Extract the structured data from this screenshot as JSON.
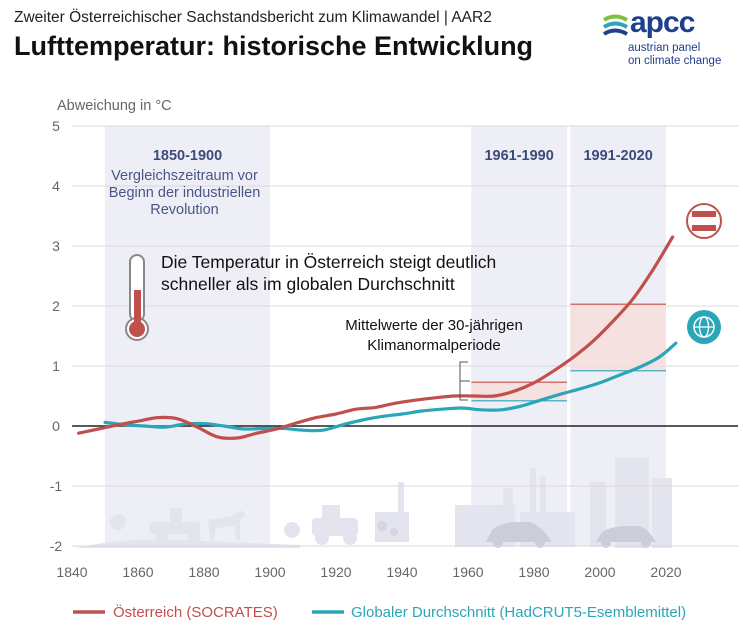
{
  "header": {
    "supertitle": "Zweiter Österreichischer Sachstandsbericht zum Klimawandel | AAR2",
    "title": "Lufttemperatur: historische Entwicklung"
  },
  "logo": {
    "word": "apcc",
    "line1": "austrian panel",
    "line2": "on climate change"
  },
  "chart_data": {
    "type": "line",
    "ylabel": "Abweichung in  °C",
    "xlim": [
      1840,
      2030
    ],
    "ylim": [
      -2,
      5
    ],
    "xticks": [
      1840,
      1860,
      1880,
      1900,
      1920,
      1940,
      1960,
      1980,
      2000,
      2020
    ],
    "yticks": [
      5,
      4,
      3,
      2,
      1,
      0,
      -1,
      -2
    ],
    "grid": true,
    "legend_position": "bottom",
    "periods": [
      {
        "start": 1850,
        "end": 1900,
        "label": "1850-1900",
        "sublabel_lines": [
          "Vergleichszeitraum vor",
          "Beginn der industriellen",
          "Revolution"
        ]
      },
      {
        "start": 1961,
        "end": 1990,
        "label": "1961-1990"
      },
      {
        "start": 1991,
        "end": 2020,
        "label": "1991-2020"
      }
    ],
    "annotations": {
      "main_lines": [
        "Die Temperatur in Österreich steigt deutlich",
        "schneller als im globalen Durchschnitt"
      ],
      "normal_lines": [
        "Mittelwerte der 30-jährigen",
        "Klimanormalperiode"
      ]
    },
    "series": [
      {
        "name": "Österreich (SOCRATES)",
        "color": "#c0504d",
        "icon": "austria-flag-icon",
        "x": [
          1842,
          1848,
          1854,
          1860,
          1866,
          1872,
          1878,
          1884,
          1890,
          1896,
          1902,
          1908,
          1914,
          1920,
          1926,
          1932,
          1938,
          1944,
          1950,
          1956,
          1962,
          1968,
          1974,
          1980,
          1986,
          1992,
          1998,
          2004,
          2010,
          2016,
          2022
        ],
        "y": [
          -0.12,
          -0.05,
          0.02,
          0.08,
          0.14,
          0.12,
          -0.02,
          -0.18,
          -0.2,
          -0.12,
          -0.05,
          0.05,
          0.14,
          0.2,
          0.28,
          0.31,
          0.38,
          0.43,
          0.47,
          0.5,
          0.5,
          0.5,
          0.58,
          0.72,
          0.92,
          1.15,
          1.42,
          1.75,
          2.12,
          2.6,
          3.15
        ],
        "period_means": [
          {
            "start": 1961,
            "end": 1990,
            "value": 0.73
          },
          {
            "start": 1991,
            "end": 2020,
            "value": 2.03
          }
        ]
      },
      {
        "name": "Globaler Durchschnitt (HadCRUT5-Esemblemittel)",
        "color": "#2ba6b8",
        "icon": "globe-icon",
        "x": [
          1850,
          1856,
          1862,
          1868,
          1874,
          1880,
          1886,
          1892,
          1898,
          1904,
          1910,
          1916,
          1922,
          1928,
          1934,
          1940,
          1946,
          1952,
          1958,
          1964,
          1970,
          1976,
          1982,
          1988,
          1994,
          2000,
          2006,
          2012,
          2018,
          2023
        ],
        "y": [
          0.06,
          0.02,
          0.0,
          -0.02,
          0.03,
          0.04,
          0.0,
          -0.05,
          -0.04,
          -0.04,
          -0.07,
          -0.07,
          0.02,
          0.1,
          0.16,
          0.2,
          0.25,
          0.28,
          0.3,
          0.27,
          0.27,
          0.33,
          0.43,
          0.53,
          0.62,
          0.72,
          0.85,
          0.98,
          1.15,
          1.38
        ],
        "period_means": [
          {
            "start": 1961,
            "end": 1990,
            "value": 0.42
          },
          {
            "start": 1991,
            "end": 2020,
            "value": 0.92
          }
        ]
      }
    ]
  }
}
